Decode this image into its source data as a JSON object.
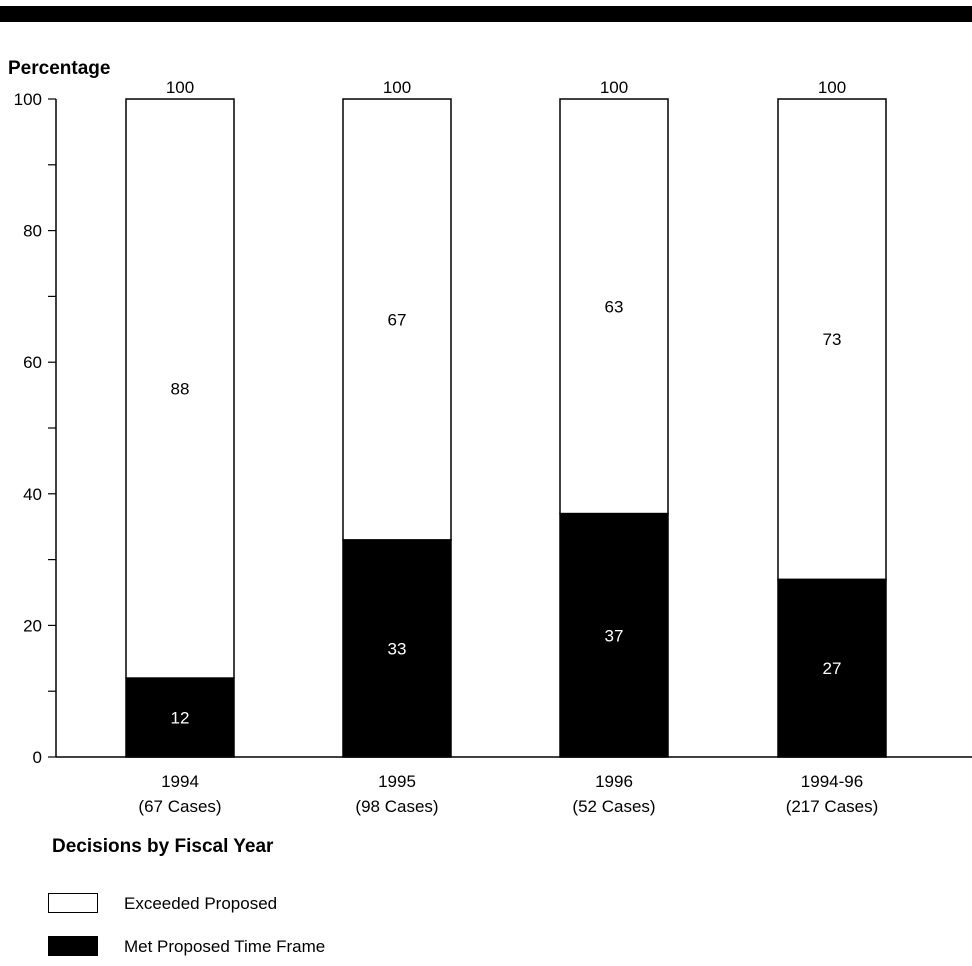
{
  "chart_data": {
    "type": "bar",
    "stacked": true,
    "ylabel": "Percentage",
    "xlabel": "Decisions by Fiscal Year",
    "ylim": [
      0,
      100
    ],
    "yticks": [
      0,
      20,
      40,
      60,
      80,
      100
    ],
    "categories": [
      {
        "line1": "1994",
        "line2": "(67 Cases)"
      },
      {
        "line1": "1995",
        "line2": "(98 Cases)"
      },
      {
        "line1": "1996",
        "line2": "(52 Cases)"
      },
      {
        "line1": "1994-96",
        "line2": "(217 Cases)"
      }
    ],
    "series": [
      {
        "name": "Met Proposed Time Frame",
        "color": "#000000",
        "values": [
          12,
          33,
          37,
          27
        ]
      },
      {
        "name": "Exceeded Proposed",
        "color": "#ffffff",
        "values": [
          88,
          67,
          63,
          73
        ]
      }
    ],
    "totals": [
      100,
      100,
      100,
      100
    ],
    "legend_position": "bottom-left"
  },
  "legend": {
    "exceeded_label": "Exceeded Proposed",
    "met_label": "Met Proposed Time Frame"
  }
}
